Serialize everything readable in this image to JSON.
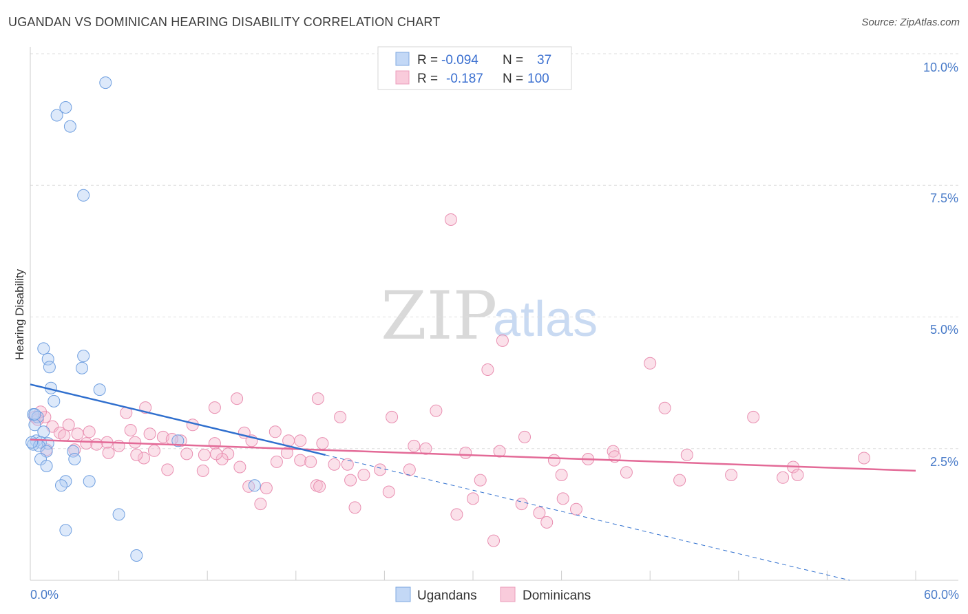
{
  "header": {
    "title": "UGANDAN VS DOMINICAN HEARING DISABILITY CORRELATION CHART",
    "source": "Source: ZipAtlas.com"
  },
  "watermark": {
    "zip": "ZIP",
    "atlas": "atlas"
  },
  "legend": {
    "rows": [
      {
        "r_label": "R =",
        "r_value": "-0.094",
        "n_label": "N =",
        "n_value": "37"
      },
      {
        "r_label": "R =",
        "r_value": "-0.187",
        "n_label": "N =",
        "n_value": "100"
      }
    ]
  },
  "chart_data": {
    "type": "scatter",
    "title": "UGANDAN VS DOMINICAN HEARING DISABILITY CORRELATION CHART",
    "xlabel": "",
    "ylabel": "Hearing Disability",
    "xlim": [
      0,
      60
    ],
    "ylim": [
      0,
      10.5
    ],
    "x_tick_labels": [
      "0.0%",
      "60.0%"
    ],
    "y_ticks": [
      2.5,
      5.0,
      7.5,
      10.0
    ],
    "y_tick_labels": [
      "2.5%",
      "5.0%",
      "7.5%",
      "10.0%"
    ],
    "grid": true,
    "colors": {
      "ugandans": "#6fa0e4",
      "dominicans": "#ee9ab8",
      "ugandans_line": "#2f6fce",
      "dominicans_line": "#e36a97"
    },
    "series": [
      {
        "name": "Ugandans",
        "r": -0.094,
        "n": 37,
        "points": [
          [
            5.1,
            9.45
          ],
          [
            2.4,
            8.98
          ],
          [
            1.8,
            8.83
          ],
          [
            2.7,
            8.62
          ],
          [
            3.6,
            7.31
          ],
          [
            0.9,
            4.4
          ],
          [
            1.2,
            4.2
          ],
          [
            1.3,
            4.05
          ],
          [
            3.5,
            4.03
          ],
          [
            3.6,
            4.26
          ],
          [
            1.4,
            3.65
          ],
          [
            4.7,
            3.62
          ],
          [
            1.6,
            3.4
          ],
          [
            0.2,
            3.15
          ],
          [
            0.5,
            3.1
          ],
          [
            0.3,
            2.95
          ],
          [
            0.9,
            2.82
          ],
          [
            0.4,
            2.65
          ],
          [
            0.7,
            2.62
          ],
          [
            1.2,
            2.6
          ],
          [
            0.2,
            2.58
          ],
          [
            0.6,
            2.55
          ],
          [
            1.1,
            2.45
          ],
          [
            2.9,
            2.45
          ],
          [
            3.0,
            2.3
          ],
          [
            0.7,
            2.3
          ],
          [
            1.1,
            2.17
          ],
          [
            2.4,
            1.88
          ],
          [
            4.0,
            1.88
          ],
          [
            2.1,
            1.8
          ],
          [
            6.0,
            1.25
          ],
          [
            2.4,
            0.95
          ],
          [
            7.2,
            0.47
          ],
          [
            15.2,
            1.8
          ],
          [
            10.0,
            2.65
          ],
          [
            0.1,
            2.62
          ],
          [
            0.3,
            3.15
          ]
        ]
      },
      {
        "name": "Dominicans",
        "r": -0.187,
        "n": 100,
        "points": [
          [
            28.5,
            6.85
          ],
          [
            32.0,
            4.55
          ],
          [
            31.0,
            4.0
          ],
          [
            42.0,
            4.12
          ],
          [
            14.0,
            3.45
          ],
          [
            19.5,
            3.45
          ],
          [
            12.5,
            3.28
          ],
          [
            27.5,
            3.22
          ],
          [
            43.0,
            3.27
          ],
          [
            7.8,
            3.28
          ],
          [
            6.5,
            3.18
          ],
          [
            21.0,
            3.1
          ],
          [
            24.5,
            3.1
          ],
          [
            49.0,
            3.1
          ],
          [
            0.3,
            3.1
          ],
          [
            1.0,
            3.1
          ],
          [
            0.7,
            3.2
          ],
          [
            1.5,
            2.92
          ],
          [
            2.6,
            2.95
          ],
          [
            11.0,
            2.95
          ],
          [
            2.0,
            2.8
          ],
          [
            3.2,
            2.78
          ],
          [
            4.0,
            2.82
          ],
          [
            8.1,
            2.78
          ],
          [
            9.0,
            2.72
          ],
          [
            14.5,
            2.8
          ],
          [
            16.6,
            2.82
          ],
          [
            15.0,
            2.65
          ],
          [
            17.5,
            2.65
          ],
          [
            10.2,
            2.65
          ],
          [
            12.5,
            2.6
          ],
          [
            33.5,
            2.72
          ],
          [
            3.8,
            2.6
          ],
          [
            5.2,
            2.62
          ],
          [
            7.1,
            2.62
          ],
          [
            9.6,
            2.68
          ],
          [
            4.5,
            2.58
          ],
          [
            6.0,
            2.55
          ],
          [
            8.4,
            2.46
          ],
          [
            10.6,
            2.4
          ],
          [
            11.8,
            2.38
          ],
          [
            13.4,
            2.4
          ],
          [
            5.3,
            2.42
          ],
          [
            7.7,
            2.32
          ],
          [
            3.0,
            2.48
          ],
          [
            26.8,
            2.5
          ],
          [
            29.5,
            2.42
          ],
          [
            39.5,
            2.45
          ],
          [
            44.5,
            2.38
          ],
          [
            56.5,
            2.32
          ],
          [
            13.0,
            2.3
          ],
          [
            16.7,
            2.25
          ],
          [
            18.3,
            2.28
          ],
          [
            20.6,
            2.2
          ],
          [
            21.5,
            2.2
          ],
          [
            22.6,
            2.0
          ],
          [
            23.7,
            2.1
          ],
          [
            25.7,
            2.1
          ],
          [
            19.0,
            2.25
          ],
          [
            35.5,
            2.28
          ],
          [
            39.6,
            2.35
          ],
          [
            40.4,
            2.05
          ],
          [
            36.0,
            2.0
          ],
          [
            44.0,
            1.9
          ],
          [
            47.5,
            2.0
          ],
          [
            51.0,
            1.95
          ],
          [
            51.7,
            2.15
          ],
          [
            52.0,
            2.0
          ],
          [
            14.2,
            2.15
          ],
          [
            9.3,
            2.1
          ],
          [
            11.7,
            2.08
          ],
          [
            14.8,
            1.78
          ],
          [
            16.0,
            1.75
          ],
          [
            19.4,
            1.8
          ],
          [
            19.6,
            1.78
          ],
          [
            21.7,
            1.9
          ],
          [
            30.5,
            1.9
          ],
          [
            24.3,
            1.68
          ],
          [
            15.6,
            1.45
          ],
          [
            22.0,
            1.38
          ],
          [
            30.0,
            1.55
          ],
          [
            36.1,
            1.55
          ],
          [
            33.3,
            1.45
          ],
          [
            28.9,
            1.25
          ],
          [
            34.5,
            1.28
          ],
          [
            35.0,
            1.1
          ],
          [
            37.0,
            1.35
          ],
          [
            31.4,
            0.75
          ],
          [
            12.6,
            2.4
          ],
          [
            7.2,
            2.38
          ],
          [
            17.4,
            2.42
          ],
          [
            18.3,
            2.65
          ],
          [
            2.3,
            2.75
          ],
          [
            6.8,
            2.85
          ],
          [
            1.1,
            2.48
          ],
          [
            26.0,
            2.55
          ],
          [
            31.8,
            2.45
          ],
          [
            0.5,
            3.05
          ],
          [
            19.8,
            2.6
          ],
          [
            37.8,
            2.3
          ]
        ]
      }
    ],
    "trend_lines": [
      {
        "series": "Ugandans",
        "solid": [
          [
            0,
            3.72
          ],
          [
            20,
            2.38
          ]
        ],
        "dashed": [
          [
            20,
            2.38
          ],
          [
            60,
            -0.3
          ]
        ]
      },
      {
        "series": "Dominicans",
        "solid": [
          [
            0,
            2.67
          ],
          [
            60,
            2.08
          ]
        ]
      }
    ],
    "bottom_legend": [
      "Ugandans",
      "Dominicans"
    ]
  }
}
